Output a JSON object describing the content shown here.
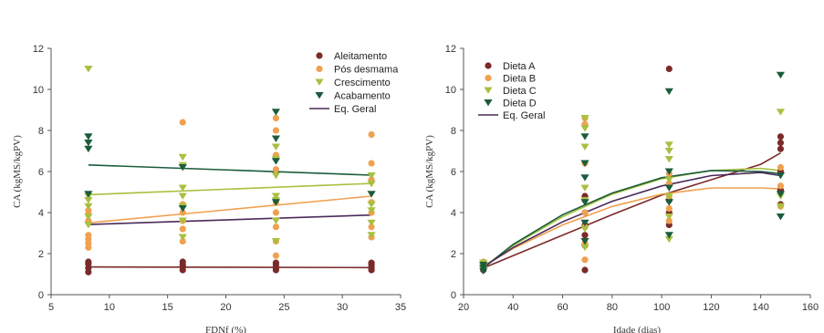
{
  "chart_data": [
    {
      "type": "scatter",
      "xlabel": "FDNf (%)",
      "ylabel": "CA (kgMS/kgPV)",
      "xlim": [
        5,
        35
      ],
      "ylim": [
        0,
        12
      ],
      "xticks": [
        5,
        10,
        15,
        20,
        25,
        30,
        35
      ],
      "yticks": [
        0,
        2,
        4,
        6,
        8,
        10,
        12
      ],
      "legend_position": "top-right",
      "series": [
        {
          "name": "Aleitamento",
          "marker": "circle",
          "color": "#7b2a2a",
          "points": [
            [
              8.2,
              1.1
            ],
            [
              8.2,
              1.3
            ],
            [
              8.2,
              1.5
            ],
            [
              8.2,
              1.6
            ],
            [
              16.3,
              1.2
            ],
            [
              16.3,
              1.35
            ],
            [
              16.3,
              1.45
            ],
            [
              16.3,
              1.6
            ],
            [
              24.3,
              1.2
            ],
            [
              24.3,
              1.3
            ],
            [
              24.3,
              1.45
            ],
            [
              24.3,
              1.55
            ],
            [
              32.5,
              1.2
            ],
            [
              32.5,
              1.3
            ],
            [
              32.5,
              1.45
            ],
            [
              32.5,
              1.55
            ]
          ],
          "trend": [
            [
              8.2,
              1.35
            ],
            [
              32.5,
              1.32
            ]
          ]
        },
        {
          "name": "Pós desmama",
          "marker": "circle",
          "color": "#f0a050",
          "points": [
            [
              8.2,
              2.3
            ],
            [
              8.2,
              2.5
            ],
            [
              8.2,
              2.7
            ],
            [
              8.2,
              2.9
            ],
            [
              8.2,
              3.6
            ],
            [
              8.2,
              3.9
            ],
            [
              8.2,
              4.1
            ],
            [
              16.3,
              2.6
            ],
            [
              16.3,
              3.2
            ],
            [
              16.3,
              3.6
            ],
            [
              16.3,
              4.0
            ],
            [
              16.3,
              4.4
            ],
            [
              16.3,
              8.4
            ],
            [
              24.3,
              1.9
            ],
            [
              24.3,
              2.6
            ],
            [
              24.3,
              3.3
            ],
            [
              24.3,
              4.0
            ],
            [
              24.3,
              4.5
            ],
            [
              24.3,
              6.1
            ],
            [
              24.3,
              6.8
            ],
            [
              24.3,
              8.0
            ],
            [
              24.3,
              8.6
            ],
            [
              32.5,
              2.8
            ],
            [
              32.5,
              3.3
            ],
            [
              32.5,
              4.0
            ],
            [
              32.5,
              4.5
            ],
            [
              32.5,
              5.6
            ],
            [
              32.5,
              6.4
            ],
            [
              32.5,
              7.8
            ]
          ],
          "trend": [
            [
              8.2,
              3.5
            ],
            [
              32.5,
              4.8
            ]
          ]
        },
        {
          "name": "Crescimento",
          "marker": "triangle-down",
          "color": "#a8c040",
          "points": [
            [
              8.2,
              3.4
            ],
            [
              8.2,
              3.8
            ],
            [
              8.2,
              4.3
            ],
            [
              8.2,
              4.6
            ],
            [
              8.2,
              4.8
            ],
            [
              8.2,
              11.0
            ],
            [
              16.3,
              2.8
            ],
            [
              16.3,
              3.6
            ],
            [
              16.3,
              4.3
            ],
            [
              16.3,
              4.8
            ],
            [
              16.3,
              5.2
            ],
            [
              16.3,
              6.3
            ],
            [
              16.3,
              6.7
            ],
            [
              24.3,
              2.6
            ],
            [
              24.3,
              3.6
            ],
            [
              24.3,
              4.6
            ],
            [
              24.3,
              4.8
            ],
            [
              24.3,
              5.8
            ],
            [
              24.3,
              6.6
            ],
            [
              24.3,
              7.2
            ],
            [
              32.5,
              2.9
            ],
            [
              32.5,
              3.5
            ],
            [
              32.5,
              4.1
            ],
            [
              32.5,
              4.4
            ],
            [
              32.5,
              5.4
            ],
            [
              32.5,
              5.8
            ]
          ],
          "trend": [
            [
              8.2,
              4.87
            ],
            [
              32.5,
              5.42
            ]
          ]
        },
        {
          "name": "Acabamento",
          "marker": "triangle-down",
          "color": "#1a5c3c",
          "points": [
            [
              8.2,
              4.9
            ],
            [
              8.2,
              7.1
            ],
            [
              8.2,
              7.4
            ],
            [
              8.2,
              7.7
            ],
            [
              16.3,
              4.2
            ],
            [
              16.3,
              6.2
            ],
            [
              24.3,
              4.5
            ],
            [
              24.3,
              6.5
            ],
            [
              24.3,
              7.6
            ],
            [
              24.3,
              8.9
            ],
            [
              32.5,
              4.9
            ]
          ],
          "trend": [
            [
              8.2,
              6.32
            ],
            [
              32.5,
              5.82
            ]
          ]
        },
        {
          "name": "Eq. Geral",
          "marker": "line",
          "color": "#4a2a5a",
          "points": [],
          "trend": [
            [
              8.2,
              3.42
            ],
            [
              32.5,
              3.88
            ]
          ]
        }
      ]
    },
    {
      "type": "scatter",
      "xlabel": "Idade (dias)",
      "ylabel": "CA (kgMS/kgPV)",
      "xlim": [
        20,
        160
      ],
      "ylim": [
        0,
        12
      ],
      "xticks": [
        20,
        40,
        60,
        80,
        100,
        120,
        140,
        160
      ],
      "yticks": [
        0,
        2,
        4,
        6,
        8,
        10,
        12
      ],
      "legend_position": "top-left",
      "series": [
        {
          "name": "Dieta A",
          "marker": "circle",
          "color": "#7b2a2a",
          "points": [
            [
              28,
              1.2
            ],
            [
              28,
              1.35
            ],
            [
              28,
              1.5
            ],
            [
              69,
              1.2
            ],
            [
              69,
              2.4
            ],
            [
              69,
              2.9
            ],
            [
              69,
              3.4
            ],
            [
              69,
              4.0
            ],
            [
              69,
              4.8
            ],
            [
              103,
              3.4
            ],
            [
              103,
              4.0
            ],
            [
              103,
              4.6
            ],
            [
              103,
              5.4
            ],
            [
              103,
              11.0
            ],
            [
              148,
              4.4
            ],
            [
              148,
              5.1
            ],
            [
              148,
              6.0
            ],
            [
              148,
              7.1
            ],
            [
              148,
              7.4
            ],
            [
              148,
              7.7
            ]
          ],
          "trend": [
            [
              28,
              1.3
            ],
            [
              40,
              1.9
            ],
            [
              60,
              2.9
            ],
            [
              80,
              3.9
            ],
            [
              100,
              4.85
            ],
            [
              120,
              5.6
            ],
            [
              140,
              6.35
            ],
            [
              148,
              6.9
            ]
          ]
        },
        {
          "name": "Dieta B",
          "marker": "circle",
          "color": "#f0a050",
          "points": [
            [
              28,
              1.3
            ],
            [
              28,
              1.45
            ],
            [
              28,
              1.6
            ],
            [
              69,
              1.7
            ],
            [
              69,
              2.5
            ],
            [
              69,
              3.3
            ],
            [
              69,
              4.0
            ],
            [
              69,
              4.6
            ],
            [
              69,
              6.4
            ],
            [
              69,
              8.3
            ],
            [
              69,
              8.6
            ],
            [
              103,
              3.6
            ],
            [
              103,
              4.2
            ],
            [
              103,
              4.8
            ],
            [
              103,
              5.4
            ],
            [
              103,
              5.9
            ],
            [
              148,
              4.3
            ],
            [
              148,
              5.3
            ],
            [
              148,
              6.2
            ]
          ],
          "trend": [
            [
              28,
              1.4
            ],
            [
              40,
              2.25
            ],
            [
              60,
              3.4
            ],
            [
              80,
              4.3
            ],
            [
              100,
              4.9
            ],
            [
              120,
              5.2
            ],
            [
              140,
              5.2
            ],
            [
              148,
              5.15
            ]
          ]
        },
        {
          "name": "Dieta C",
          "marker": "triangle-down",
          "color": "#a8c040",
          "points": [
            [
              28,
              1.25
            ],
            [
              28,
              1.4
            ],
            [
              28,
              1.55
            ],
            [
              69,
              2.3
            ],
            [
              69,
              3.2
            ],
            [
              69,
              4.6
            ],
            [
              69,
              5.2
            ],
            [
              69,
              6.4
            ],
            [
              69,
              7.2
            ],
            [
              69,
              8.1
            ],
            [
              69,
              8.6
            ],
            [
              103,
              2.7
            ],
            [
              103,
              3.8
            ],
            [
              103,
              4.8
            ],
            [
              103,
              5.6
            ],
            [
              103,
              6.6
            ],
            [
              103,
              7.0
            ],
            [
              103,
              7.3
            ],
            [
              148,
              4.3
            ],
            [
              148,
              4.8
            ],
            [
              148,
              8.9
            ]
          ],
          "trend": [
            [
              28,
              1.35
            ],
            [
              40,
              2.4
            ],
            [
              60,
              3.8
            ],
            [
              80,
              4.9
            ],
            [
              100,
              5.65
            ],
            [
              120,
              6.05
            ],
            [
              140,
              6.15
            ],
            [
              148,
              6.05
            ]
          ]
        },
        {
          "name": "Dieta D",
          "marker": "triangle-down",
          "color": "#1a5c3c",
          "points": [
            [
              28,
              1.15
            ],
            [
              28,
              1.3
            ],
            [
              28,
              1.45
            ],
            [
              69,
              2.6
            ],
            [
              69,
              3.5
            ],
            [
              69,
              4.5
            ],
            [
              69,
              5.7
            ],
            [
              69,
              6.4
            ],
            [
              69,
              7.7
            ],
            [
              103,
              2.9
            ],
            [
              103,
              4.5
            ],
            [
              103,
              5.2
            ],
            [
              103,
              6.0
            ],
            [
              103,
              9.9
            ],
            [
              148,
              3.8
            ],
            [
              148,
              4.9
            ],
            [
              148,
              5.8
            ],
            [
              148,
              10.7
            ]
          ],
          "trend": [
            [
              28,
              1.3
            ],
            [
              40,
              2.45
            ],
            [
              60,
              3.9
            ],
            [
              80,
              4.95
            ],
            [
              100,
              5.7
            ],
            [
              120,
              6.05
            ],
            [
              140,
              6.0
            ],
            [
              148,
              5.9
            ]
          ]
        },
        {
          "name": "Eq. Geral",
          "marker": "line",
          "color": "#4a2a5a",
          "points": [],
          "trend": [
            [
              28,
              1.35
            ],
            [
              40,
              2.3
            ],
            [
              60,
              3.55
            ],
            [
              80,
              4.55
            ],
            [
              100,
              5.3
            ],
            [
              120,
              5.8
            ],
            [
              140,
              5.95
            ],
            [
              148,
              5.8
            ]
          ]
        }
      ]
    }
  ]
}
